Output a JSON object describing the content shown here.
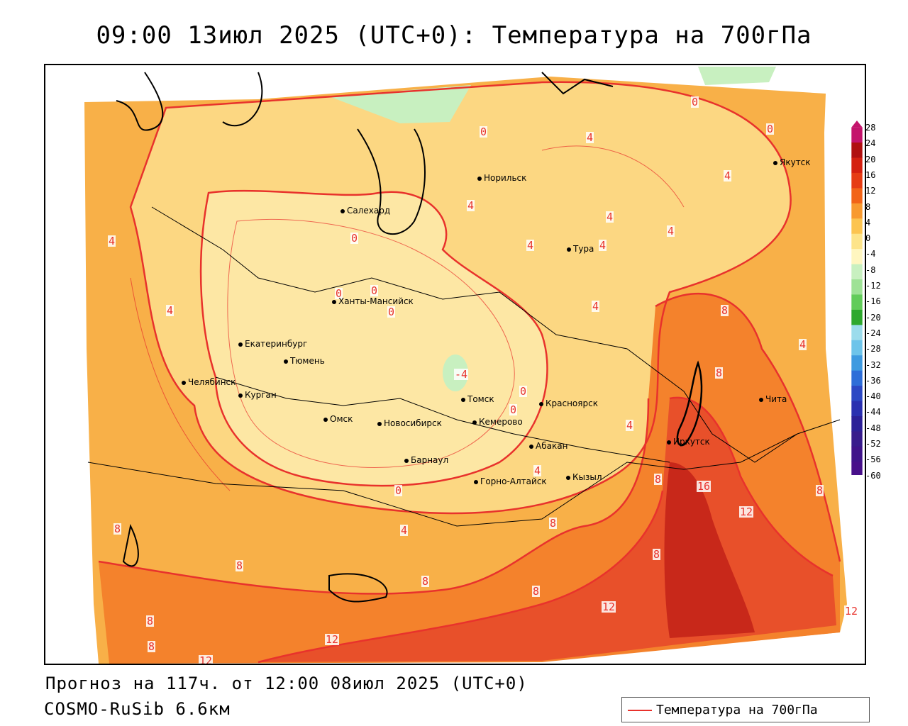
{
  "title": "09:00 13июл 2025 (UTC+0): Температура на 700гПа",
  "footer": {
    "forecast": "Прогноз на 117ч. от 12:00 08июл 2025 (UTC+0)",
    "model": "COSMO-RuSib 6.6км"
  },
  "legend": {
    "label": "Температура на 700гПа",
    "line_color": "#e8322c"
  },
  "cities": [
    {
      "name": "Норильск"
    },
    {
      "name": "Салехард"
    },
    {
      "name": "Тура"
    },
    {
      "name": "Якутск"
    },
    {
      "name": "Ханты-Мансийск"
    },
    {
      "name": "Екатеринбург"
    },
    {
      "name": "Тюмень"
    },
    {
      "name": "Челябинск"
    },
    {
      "name": "Курган"
    },
    {
      "name": "Омск"
    },
    {
      "name": "Новосибирск"
    },
    {
      "name": "Томск"
    },
    {
      "name": "Кемерово"
    },
    {
      "name": "Красноярск"
    },
    {
      "name": "Абакан"
    },
    {
      "name": "Барнаул"
    },
    {
      "name": "Горно-Алтайск"
    },
    {
      "name": "Кызыл"
    },
    {
      "name": "Иркутск"
    },
    {
      "name": "Чита"
    }
  ],
  "contour_labels": [
    "0",
    "0",
    "0",
    "0",
    "0",
    "0",
    "0",
    "0",
    "0",
    "0",
    "4",
    "4",
    "4",
    "4",
    "4",
    "4",
    "4",
    "4",
    "4",
    "4",
    "4",
    "4",
    "4",
    "4",
    "8",
    "8",
    "8",
    "8",
    "8",
    "8",
    "8",
    "8",
    "8",
    "8",
    "8",
    "8",
    "12",
    "12",
    "12",
    "12",
    "12",
    "16",
    "-4"
  ],
  "colorbar": {
    "ticks": [
      "28",
      "24",
      "20",
      "16",
      "12",
      "8",
      "4",
      "0",
      "-4",
      "-8",
      "-12",
      "-16",
      "-20",
      "-24",
      "-28",
      "-32",
      "-36",
      "-40",
      "-44",
      "-48",
      "-52",
      "-56",
      "-60"
    ],
    "colors": [
      "#c4146c",
      "#b01010",
      "#d42010",
      "#e63c14",
      "#f26418",
      "#f89a30",
      "#fcc450",
      "#fde48a",
      "#fff6c0",
      "#c8f0c0",
      "#9ee296",
      "#62cc5a",
      "#2ea82e",
      "#9cdcec",
      "#6ec4ea",
      "#3e9ae0",
      "#2e6ed8",
      "#2c48c4",
      "#2a30b0",
      "#2c2098",
      "#381c8c",
      "#40148a",
      "#48108a"
    ]
  }
}
